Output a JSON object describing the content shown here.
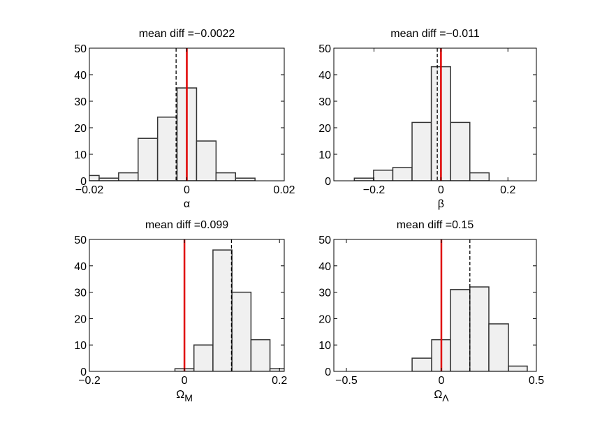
{
  "chart_data": [
    {
      "type": "histogram",
      "title": "mean diff =−0.0022",
      "xlabel": "α",
      "bins": [
        -0.022,
        -0.018,
        -0.014,
        -0.01,
        -0.006,
        -0.002,
        0.002,
        0.006,
        0.01,
        0.014,
        0.018,
        0.022
      ],
      "values": [
        2,
        1,
        3,
        16,
        24,
        35,
        15,
        3,
        1,
        0,
        0
      ],
      "color": "#f0f0f0",
      "edgecolor": "#333333",
      "xlim": [
        -0.02,
        0.02
      ],
      "ylim": [
        0,
        50
      ],
      "xticks": [
        {
          "value": -0.02,
          "label": "−0.02"
        },
        0,
        0.02
      ],
      "yticks": [
        0,
        10,
        20,
        30,
        40,
        50
      ],
      "mean_diff": -0.0022,
      "reference_line": 0,
      "reference_color": "#e00000",
      "grid": false
    },
    {
      "type": "histogram",
      "title": "mean diff =−0.011",
      "xlabel": "β",
      "bins": [
        -0.2588,
        -0.2013,
        -0.1438,
        -0.0863,
        -0.0288,
        0.0288,
        0.0863,
        0.1438,
        0.2013,
        0.2588,
        0.3163
      ],
      "values": [
        1,
        4,
        5,
        22,
        43,
        22,
        3,
        0,
        0,
        0
      ],
      "color": "#f0f0f0",
      "edgecolor": "#333333",
      "xlim": [
        -0.32,
        0.285
      ],
      "ylim": [
        0,
        50
      ],
      "xticks": [
        {
          "value": -0.2,
          "label": "−0.2"
        },
        0,
        0.2
      ],
      "yticks": [
        0,
        10,
        20,
        30,
        40,
        50
      ],
      "mean_diff": -0.011,
      "reference_line": 0,
      "reference_color": "#e00000",
      "grid": false
    },
    {
      "type": "histogram",
      "title": "mean diff =0.099",
      "xlabel": "Ω",
      "xlabel_subscript": "M",
      "bins": [
        -0.02,
        0.02,
        0.06,
        0.1,
        0.14,
        0.18,
        0.22
      ],
      "values": [
        1,
        10,
        46,
        30,
        12,
        1
      ],
      "color": "#f0f0f0",
      "edgecolor": "#333333",
      "xlim": [
        -0.2,
        0.21
      ],
      "ylim": [
        0,
        50
      ],
      "xticks": [
        {
          "value": -0.2,
          "label": "−0.2"
        },
        0,
        0.2
      ],
      "yticks": [
        0,
        10,
        20,
        30,
        40,
        50
      ],
      "mean_diff": 0.099,
      "reference_line": 0,
      "reference_color": "#e00000",
      "grid": false
    },
    {
      "type": "histogram",
      "title": "mean diff =0.15",
      "xlabel": "Ω",
      "xlabel_subscript": "Λ",
      "bins": [
        -0.154,
        -0.051,
        0.048,
        0.15,
        0.25,
        0.353,
        0.452
      ],
      "values": [
        5,
        12,
        31,
        32,
        18,
        2
      ],
      "color": "#f0f0f0",
      "edgecolor": "#333333",
      "xlim": [
        -0.566,
        0.5
      ],
      "ylim": [
        0,
        50
      ],
      "xticks": [
        {
          "value": -0.5,
          "label": "−0.5"
        },
        0,
        0.5
      ],
      "yticks": [
        0,
        10,
        20,
        30,
        40,
        50
      ],
      "mean_diff": 0.15,
      "reference_line": 0,
      "reference_color": "#e00000",
      "grid": false
    }
  ]
}
